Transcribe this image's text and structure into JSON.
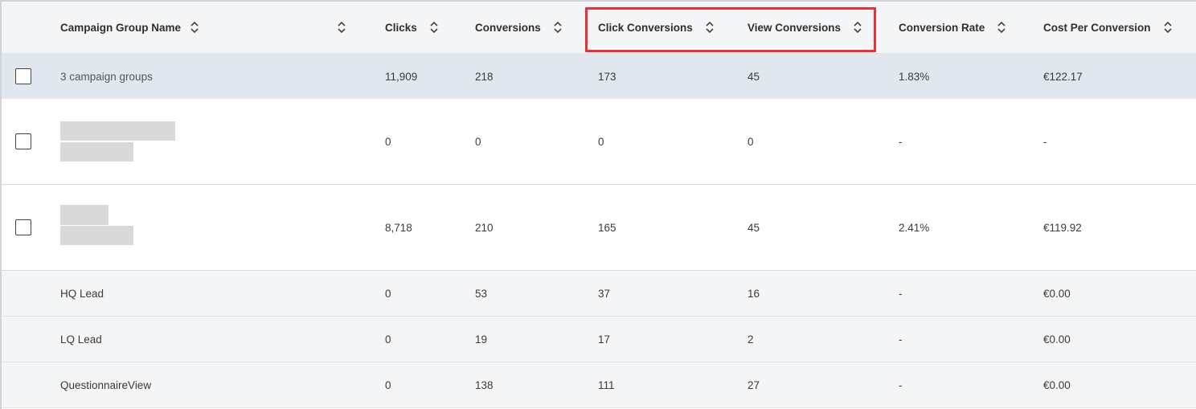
{
  "table": {
    "columns": {
      "name": "Campaign Group Name",
      "clicks": "Clicks",
      "conversions": "Conversions",
      "click_conversions": "Click Conversions",
      "view_conversions": "View Conversions",
      "conversion_rate": "Conversion Rate",
      "cost_per_conversion": "Cost Per Conversion"
    },
    "summary": {
      "name": "3 campaign groups",
      "clicks": "11,909",
      "conversions": "218",
      "click_conversions": "173",
      "view_conversions": "45",
      "conversion_rate": "1.83%",
      "cost_per_conversion": "€122.17"
    },
    "rows": [
      {
        "clicks": "0",
        "conversions": "0",
        "click_conversions": "0",
        "view_conversions": "0",
        "conversion_rate": "-",
        "cost_per_conversion": "-"
      },
      {
        "clicks": "8,718",
        "conversions": "210",
        "click_conversions": "165",
        "view_conversions": "45",
        "conversion_rate": "2.41%",
        "cost_per_conversion": "€119.92"
      }
    ],
    "sub_rows": [
      {
        "name": "HQ Lead",
        "clicks": "0",
        "conversions": "53",
        "click_conversions": "37",
        "view_conversions": "16",
        "conversion_rate": "-",
        "cost_per_conversion": "€0.00"
      },
      {
        "name": "LQ Lead",
        "clicks": "0",
        "conversions": "19",
        "click_conversions": "17",
        "view_conversions": "2",
        "conversion_rate": "-",
        "cost_per_conversion": "€0.00"
      },
      {
        "name": "QuestionnaireView",
        "clicks": "0",
        "conversions": "138",
        "click_conversions": "111",
        "view_conversions": "27",
        "conversion_rate": "-",
        "cost_per_conversion": "€0.00"
      }
    ]
  },
  "highlight": {
    "color": "#e8303a"
  },
  "icons": {
    "sort": "sort-updown-icon",
    "checkbox": "checkbox-unchecked"
  }
}
